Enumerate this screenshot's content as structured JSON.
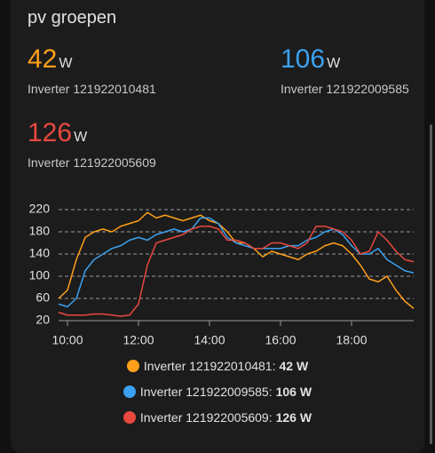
{
  "header": {
    "title": "pv groepen"
  },
  "entities": [
    {
      "value": 42,
      "unit": "W",
      "name": "Inverter 121922010481",
      "color": "#ff9f1a"
    },
    {
      "value": 106,
      "unit": "W",
      "name": "Inverter 121922009585",
      "color": "#3ba1f0"
    },
    {
      "value": 126,
      "unit": "W",
      "name": "Inverter 121922005609",
      "color": "#e8483f"
    }
  ],
  "legend": [
    {
      "label": "Inverter 121922010481:",
      "state": "42 W"
    },
    {
      "label": "Inverter 121922009585:",
      "state": "106 W"
    },
    {
      "label": "Inverter 121922005609:",
      "state": "126 W"
    }
  ],
  "chart_data": {
    "type": "line",
    "x": [
      9.75,
      10,
      10.25,
      10.5,
      10.75,
      11,
      11.25,
      11.5,
      11.75,
      12,
      12.25,
      12.5,
      12.75,
      13,
      13.25,
      13.5,
      13.75,
      14,
      14.25,
      14.5,
      14.75,
      15,
      15.25,
      15.5,
      15.75,
      16,
      16.25,
      16.5,
      16.75,
      17,
      17.25,
      17.5,
      17.75,
      18,
      18.25,
      18.5,
      18.75,
      19,
      19.25,
      19.5,
      19.75
    ],
    "xlim": [
      9.75,
      19.75
    ],
    "xticks": [
      {
        "value": 10,
        "label": "10:00"
      },
      {
        "value": 12,
        "label": "12:00"
      },
      {
        "value": 14,
        "label": "14:00"
      },
      {
        "value": 16,
        "label": "16:00"
      },
      {
        "value": 18,
        "label": "18:00"
      }
    ],
    "ylim": [
      20,
      220
    ],
    "yticks": [
      20,
      60,
      100,
      140,
      180,
      220
    ],
    "grid": true,
    "series": [
      {
        "name": "Inverter 121922010481",
        "color": "#ff9f1a",
        "values": [
          60,
          75,
          130,
          170,
          180,
          185,
          180,
          190,
          195,
          200,
          215,
          205,
          210,
          205,
          200,
          205,
          210,
          200,
          195,
          180,
          160,
          160,
          150,
          135,
          145,
          140,
          135,
          130,
          140,
          145,
          155,
          160,
          155,
          140,
          120,
          95,
          90,
          100,
          75,
          55,
          42
        ]
      },
      {
        "name": "Inverter 121922009585",
        "color": "#3ba1f0",
        "values": [
          50,
          45,
          60,
          110,
          130,
          140,
          150,
          155,
          165,
          170,
          165,
          175,
          180,
          185,
          180,
          185,
          205,
          205,
          195,
          170,
          160,
          155,
          150,
          150,
          150,
          150,
          155,
          155,
          165,
          170,
          180,
          185,
          175,
          155,
          140,
          140,
          150,
          130,
          120,
          110,
          106
        ]
      },
      {
        "name": "Inverter 121922005609",
        "color": "#e8483f",
        "values": [
          35,
          30,
          30,
          30,
          32,
          32,
          30,
          28,
          30,
          50,
          120,
          160,
          165,
          170,
          175,
          185,
          190,
          190,
          185,
          165,
          165,
          160,
          150,
          150,
          160,
          160,
          155,
          150,
          160,
          190,
          190,
          185,
          180,
          165,
          140,
          145,
          180,
          165,
          145,
          130,
          126
        ]
      }
    ]
  }
}
